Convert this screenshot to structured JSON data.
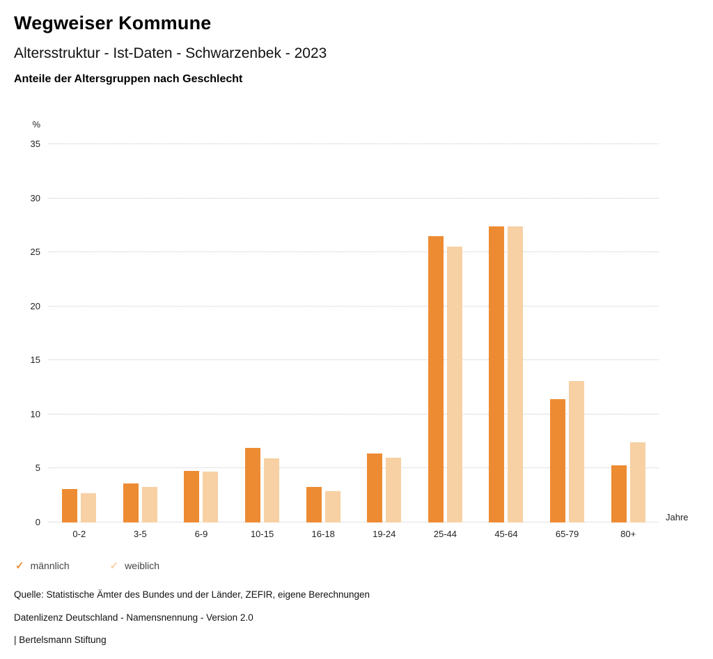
{
  "header": {
    "title": "Wegweiser Kommune",
    "subtitle": "Altersstruktur - Ist-Daten - Schwarzenbek - 2023",
    "chart_heading": "Anteile der Altersgruppen nach Geschlecht"
  },
  "chart_data": {
    "type": "bar",
    "title": "Anteile der Altersgruppen nach Geschlecht",
    "categories": [
      "0-2",
      "3-5",
      "6-9",
      "10-15",
      "16-18",
      "19-24",
      "25-44",
      "45-64",
      "65-79",
      "80+"
    ],
    "series": [
      {
        "name": "männlich",
        "color": "#ED8B33",
        "values": [
          3.1,
          3.6,
          4.8,
          6.9,
          3.3,
          6.4,
          26.5,
          27.4,
          11.4,
          5.3
        ]
      },
      {
        "name": "weiblich",
        "color": "#F7D0A3",
        "values": [
          2.7,
          3.3,
          4.7,
          5.9,
          2.9,
          6.0,
          25.5,
          27.4,
          13.1,
          7.4
        ]
      }
    ],
    "ylabel": "%",
    "xlabel": "Jahre",
    "ylim": [
      0,
      35
    ],
    "yticks": [
      0,
      5,
      10,
      15,
      20,
      25,
      30,
      35
    ],
    "grid": true,
    "grid_style": "dotted",
    "legend_position": "bottom"
  },
  "footer": {
    "source": "Quelle: Statistische Ämter des Bundes und der Länder, ZEFIR, eigene Berechnungen",
    "license": "Datenlizenz Deutschland - Namensnennung - Version 2.0",
    "attribution": "| Bertelsmann Stiftung"
  }
}
